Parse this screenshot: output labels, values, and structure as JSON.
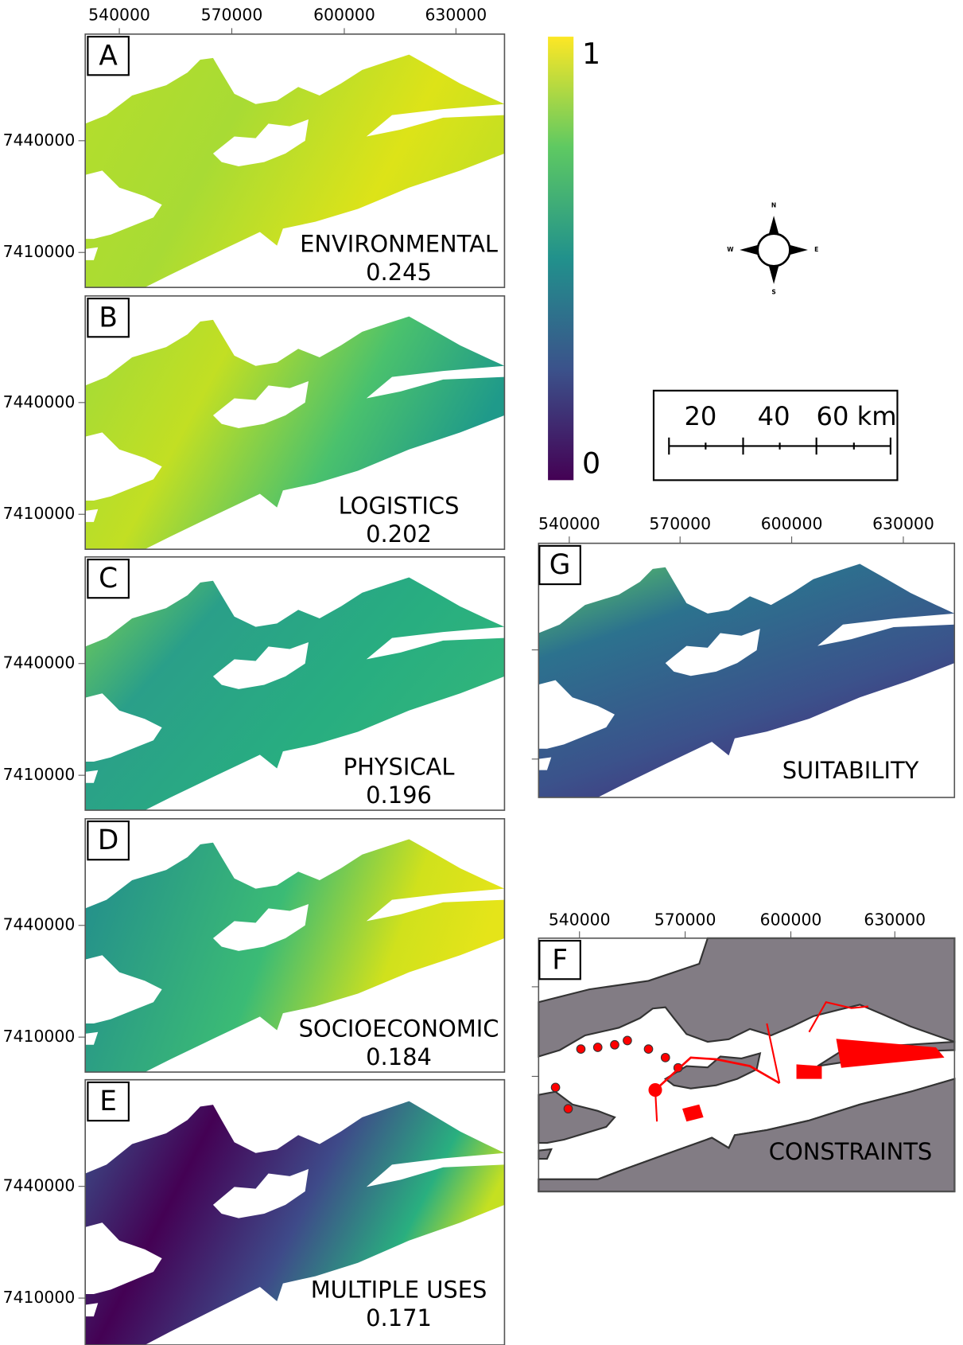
{
  "top_axis": {
    "xticks": [
      540000,
      570000,
      600000,
      630000
    ]
  },
  "panels": [
    {
      "letter": "A",
      "name": "ENVIRONMENTAL",
      "weight": 0.245,
      "yticks": [
        7440000,
        7410000
      ]
    },
    {
      "letter": "B",
      "name": "LOGISTICS",
      "weight": 0.202,
      "yticks": [
        7440000,
        7410000
      ]
    },
    {
      "letter": "C",
      "name": "PHYSICAL",
      "weight": 0.196,
      "yticks": [
        7440000,
        7410000
      ]
    },
    {
      "letter": "D",
      "name": "SOCIOECONOMIC",
      "weight": 0.184,
      "yticks": [
        7440000,
        7410000
      ]
    },
    {
      "letter": "E",
      "name": "MULTIPLE USES",
      "weight": 0.171,
      "yticks": [
        7440000,
        7410000
      ]
    }
  ],
  "panel_g": {
    "letter": "G",
    "name": "SUITABILITY",
    "xticks": [
      540000,
      570000,
      600000,
      630000
    ]
  },
  "panel_f": {
    "letter": "F",
    "name": "CONSTRAINTS",
    "xticks": [
      540000,
      570000,
      600000,
      630000
    ]
  },
  "colorbar": {
    "max": 1,
    "min": 0
  },
  "compass": {
    "north": "N",
    "west": "W",
    "east": "E",
    "south": "S"
  },
  "scale_bar": {
    "labels": [
      "20",
      "40",
      "60 km"
    ]
  }
}
